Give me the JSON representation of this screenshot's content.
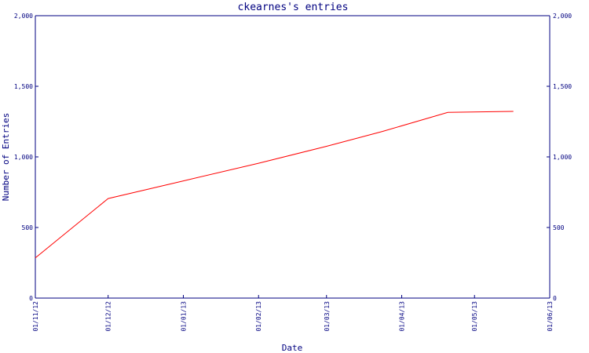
{
  "chart_data": {
    "type": "line",
    "title": "ckearnes's entries",
    "xlabel": "Date",
    "ylabel": "Number of Entries",
    "x_ticks": [
      "01/11/12",
      "01/12/12",
      "01/01/13",
      "01/02/13",
      "01/03/13",
      "01/04/13",
      "01/05/13",
      "01/06/13"
    ],
    "y_ticks": [
      "0",
      "500",
      "1,000",
      "1,500",
      "2,000"
    ],
    "ylim": [
      0,
      2000
    ],
    "xlim": [
      "2012-11-01",
      "2013-06-01"
    ],
    "grid": false,
    "series": [
      {
        "color": "#ff0000",
        "points": [
          {
            "x": "2012-11-01",
            "y": 285
          },
          {
            "x": "2012-12-01",
            "y": 705
          },
          {
            "x": "2013-01-01",
            "y": 830
          },
          {
            "x": "2013-02-01",
            "y": 955
          },
          {
            "x": "2013-03-01",
            "y": 1075
          },
          {
            "x": "2013-03-24",
            "y": 1180
          },
          {
            "x": "2013-04-20",
            "y": 1315
          },
          {
            "x": "2013-05-17",
            "y": 1322
          }
        ]
      }
    ]
  }
}
